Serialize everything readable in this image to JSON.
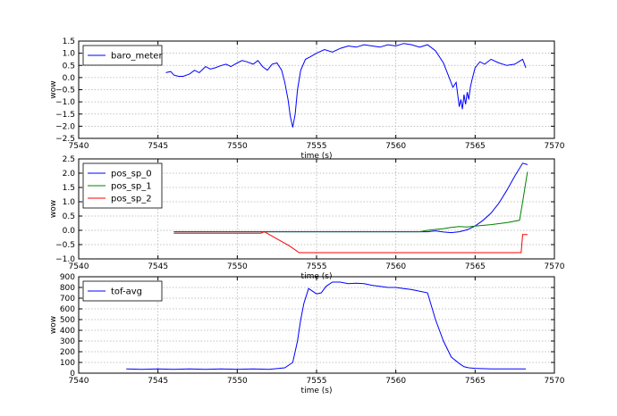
{
  "chart_data": [
    {
      "type": "line",
      "xlabel": "time (s)",
      "ylabel": "wow",
      "xlim": [
        7540,
        7570
      ],
      "ylim": [
        -2.5,
        1.5
      ],
      "xticks": [
        7540,
        7545,
        7550,
        7555,
        7560,
        7565,
        7570
      ],
      "xtick_labels": [
        "7540",
        "7545",
        "7550",
        "7555",
        "7560",
        "7565",
        "7570"
      ],
      "yticks": [
        -2.5,
        -2.0,
        -1.5,
        -1.0,
        -0.5,
        0.0,
        0.5,
        1.0,
        1.5
      ],
      "ytick_labels": [
        "−2.5",
        "−2.0",
        "−1.5",
        "−1.0",
        "−0.5",
        "0.0",
        "0.5",
        "1.0",
        "1.5"
      ],
      "grid": true,
      "legend": "top-left",
      "series": [
        {
          "name": "baro_meter",
          "color": "#0000ff",
          "x": [
            7545.5,
            7545.8,
            7546.0,
            7546.3,
            7546.6,
            7547.0,
            7547.3,
            7547.6,
            7548.0,
            7548.3,
            7548.6,
            7549.0,
            7549.3,
            7549.6,
            7550.0,
            7550.3,
            7550.6,
            7551.0,
            7551.3,
            7551.6,
            7551.9,
            7552.2,
            7552.5,
            7552.8,
            7553.0,
            7553.2,
            7553.35,
            7553.5,
            7553.65,
            7553.8,
            7554.0,
            7554.3,
            7554.6,
            7555.0,
            7555.5,
            7556.0,
            7556.5,
            7557.0,
            7557.5,
            7558.0,
            7558.5,
            7559.0,
            7559.5,
            7560.0,
            7560.5,
            7561.0,
            7561.5,
            7562.0,
            7562.5,
            7563.0,
            7563.3,
            7563.6,
            7563.8,
            7564.0,
            7564.1,
            7564.2,
            7564.3,
            7564.4,
            7564.5,
            7564.6,
            7564.7,
            7564.8,
            7565.0,
            7565.3,
            7565.6,
            7566.0,
            7566.5,
            7567.0,
            7567.5,
            7568.0,
            7568.2
          ],
          "y": [
            0.2,
            0.25,
            0.1,
            0.05,
            0.05,
            0.15,
            0.3,
            0.2,
            0.45,
            0.35,
            0.4,
            0.5,
            0.55,
            0.45,
            0.6,
            0.7,
            0.65,
            0.55,
            0.7,
            0.45,
            0.3,
            0.55,
            0.6,
            0.3,
            -0.2,
            -0.9,
            -1.6,
            -2.05,
            -1.5,
            -0.5,
            0.3,
            0.75,
            0.85,
            1.0,
            1.15,
            1.05,
            1.2,
            1.3,
            1.25,
            1.35,
            1.3,
            1.25,
            1.35,
            1.3,
            1.4,
            1.35,
            1.25,
            1.35,
            1.1,
            0.6,
            0.1,
            -0.4,
            -0.2,
            -1.2,
            -0.9,
            -1.3,
            -0.7,
            -1.1,
            -0.6,
            -0.9,
            -0.4,
            -0.1,
            0.4,
            0.65,
            0.55,
            0.75,
            0.6,
            0.5,
            0.55,
            0.75,
            0.4
          ]
        }
      ]
    },
    {
      "type": "line",
      "xlabel": "time (s)",
      "ylabel": "wow",
      "xlim": [
        7540,
        7570
      ],
      "ylim": [
        -1.0,
        2.5
      ],
      "xticks": [
        7540,
        7545,
        7550,
        7555,
        7560,
        7565,
        7570
      ],
      "xtick_labels": [
        "7540",
        "7545",
        "7550",
        "7555",
        "7560",
        "7565",
        "7570"
      ],
      "yticks": [
        -1.0,
        -0.5,
        0.0,
        0.5,
        1.0,
        1.5,
        2.0,
        2.5
      ],
      "ytick_labels": [
        "−1.0",
        "−0.5",
        "0.0",
        "0.5",
        "1.0",
        "1.5",
        "2.0",
        "2.5"
      ],
      "grid": true,
      "legend": "top-left",
      "series": [
        {
          "name": "pos_sp_0",
          "color": "#0000ff",
          "x": [
            7546.0,
            7550.0,
            7555.0,
            7560.0,
            7562.0,
            7562.5,
            7563.0,
            7563.5,
            7564.0,
            7564.5,
            7565.0,
            7565.5,
            7566.0,
            7566.5,
            7567.0,
            7567.5,
            7568.0,
            7568.3
          ],
          "y": [
            -0.05,
            -0.05,
            -0.05,
            -0.05,
            -0.05,
            -0.02,
            -0.06,
            -0.08,
            -0.05,
            0.02,
            0.15,
            0.35,
            0.6,
            0.95,
            1.4,
            1.9,
            2.35,
            2.3
          ]
        },
        {
          "name": "pos_sp_1",
          "color": "#008000",
          "x": [
            7546.0,
            7550.0,
            7555.0,
            7560.0,
            7561.5,
            7562.0,
            7562.5,
            7563.0,
            7563.5,
            7564.0,
            7564.5,
            7565.0,
            7566.0,
            7567.0,
            7567.8,
            7568.0,
            7568.3
          ],
          "y": [
            -0.05,
            -0.05,
            -0.05,
            -0.05,
            -0.05,
            0.0,
            0.03,
            0.06,
            0.1,
            0.13,
            0.12,
            0.15,
            0.2,
            0.27,
            0.35,
            1.0,
            2.05
          ]
        },
        {
          "name": "pos_sp_2",
          "color": "#ff0000",
          "x": [
            7546.0,
            7550.0,
            7551.5,
            7551.7,
            7552.5,
            7553.3,
            7553.9,
            7555.0,
            7560.0,
            7565.0,
            7567.9,
            7568.0,
            7568.3
          ],
          "y": [
            -0.1,
            -0.1,
            -0.1,
            -0.05,
            -0.3,
            -0.55,
            -0.78,
            -0.78,
            -0.78,
            -0.78,
            -0.78,
            -0.15,
            -0.15
          ]
        }
      ]
    },
    {
      "type": "line",
      "xlabel": "time (s)",
      "ylabel": "wow",
      "xlim": [
        7540,
        7570
      ],
      "ylim": [
        0,
        900
      ],
      "xticks": [
        7540,
        7545,
        7550,
        7555,
        7560,
        7565,
        7570
      ],
      "xtick_labels": [
        "7540",
        "7545",
        "7550",
        "7555",
        "7560",
        "7565",
        "7570"
      ],
      "yticks": [
        0,
        100,
        200,
        300,
        400,
        500,
        600,
        700,
        800,
        900
      ],
      "ytick_labels": [
        "0",
        "100",
        "200",
        "300",
        "400",
        "500",
        "600",
        "700",
        "800",
        "900"
      ],
      "grid": true,
      "legend": "top-left",
      "series": [
        {
          "name": "tof-avg",
          "color": "#0000ff",
          "x": [
            7543.0,
            7544.0,
            7545.0,
            7546.0,
            7547.0,
            7548.0,
            7549.0,
            7550.0,
            7551.0,
            7552.0,
            7553.0,
            7553.5,
            7553.8,
            7554.0,
            7554.2,
            7554.5,
            7555.0,
            7555.3,
            7555.6,
            7556.0,
            7556.5,
            7557.0,
            7557.5,
            7558.0,
            7558.5,
            7559.0,
            7559.5,
            7560.0,
            7560.5,
            7561.0,
            7561.5,
            7562.0,
            7562.5,
            7563.0,
            7563.5,
            7564.0,
            7564.3,
            7564.6,
            7565.0,
            7566.0,
            7567.0,
            7568.0,
            7568.2
          ],
          "y": [
            40,
            35,
            40,
            35,
            40,
            35,
            40,
            35,
            40,
            35,
            50,
            100,
            300,
            500,
            650,
            790,
            740,
            750,
            810,
            850,
            850,
            835,
            840,
            835,
            820,
            810,
            800,
            800,
            790,
            780,
            765,
            750,
            500,
            300,
            150,
            90,
            60,
            50,
            45,
            40,
            40,
            40,
            40
          ]
        }
      ]
    }
  ]
}
